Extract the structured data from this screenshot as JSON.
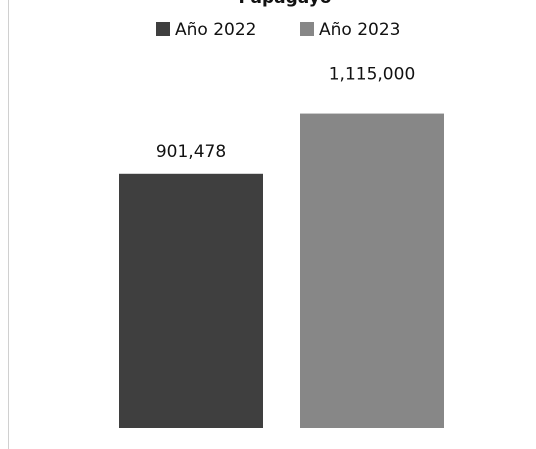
{
  "chart_data": {
    "type": "bar",
    "title": "Papagayo",
    "categories": [
      null
    ],
    "series": [
      {
        "name": "Año 2022",
        "color": "#3f3f3f",
        "values": [
          901478
        ],
        "value_labels": [
          "901,478"
        ]
      },
      {
        "name": "Año 2023",
        "color": "#878787",
        "values": [
          1115000
        ],
        "value_labels": [
          "1,115,000"
        ]
      }
    ],
    "ylim": [
      0,
      1500000
    ]
  }
}
